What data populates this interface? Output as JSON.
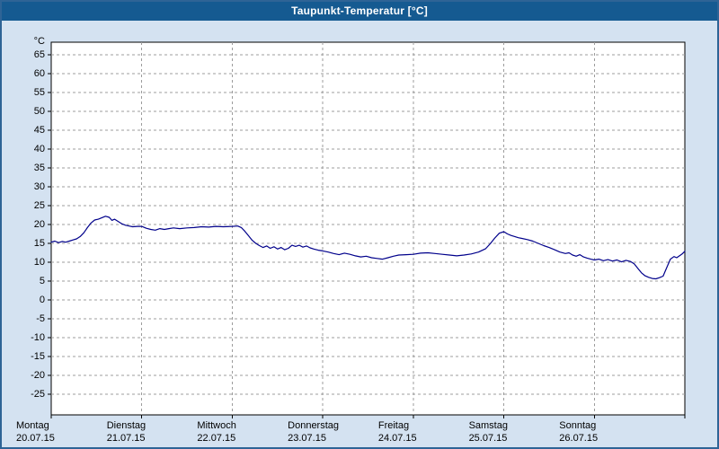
{
  "window": {
    "title": "Taupunkt-Temperatur [°C]"
  },
  "colors": {
    "titlebar": "#155a91",
    "window_background": "#d4e2f1",
    "window_border": "#2e6496",
    "plot_background": "#ffffff",
    "plot_border": "#000000",
    "grid": "#9c9c9c",
    "line": "#00008b",
    "text": "#000000"
  },
  "chart_data": {
    "type": "line",
    "title": "Taupunkt-Temperatur [°C]",
    "ylabel": "°C",
    "xlabel": "",
    "grid": "on",
    "legend": "none",
    "ylim": [
      -25,
      65
    ],
    "y_ticks": [
      65,
      60,
      55,
      50,
      45,
      40,
      35,
      30,
      25,
      20,
      15,
      10,
      5,
      0,
      -5,
      -10,
      -15,
      -20,
      -25
    ],
    "x_range_days": [
      0,
      7
    ],
    "x_days": [
      {
        "name": "Montag",
        "date": "20.07.15"
      },
      {
        "name": "Dienstag",
        "date": "21.07.15"
      },
      {
        "name": "Mittwoch",
        "date": "22.07.15"
      },
      {
        "name": "Donnerstag",
        "date": "23.07.15"
      },
      {
        "name": "Freitag",
        "date": "24.07.15"
      },
      {
        "name": "Samstag",
        "date": "25.07.15"
      },
      {
        "name": "Sonntag",
        "date": "26.07.15"
      }
    ],
    "series": [
      {
        "name": "Taupunkt-Temperatur",
        "unit": "°C",
        "color": "#00008b",
        "points": [
          [
            0.0,
            15.3
          ],
          [
            0.04,
            15.6
          ],
          [
            0.08,
            15.2
          ],
          [
            0.12,
            15.5
          ],
          [
            0.16,
            15.3
          ],
          [
            0.2,
            15.6
          ],
          [
            0.24,
            15.9
          ],
          [
            0.28,
            16.2
          ],
          [
            0.32,
            16.8
          ],
          [
            0.36,
            17.8
          ],
          [
            0.4,
            19.2
          ],
          [
            0.44,
            20.4
          ],
          [
            0.48,
            21.2
          ],
          [
            0.52,
            21.4
          ],
          [
            0.56,
            21.8
          ],
          [
            0.6,
            22.2
          ],
          [
            0.64,
            21.9
          ],
          [
            0.67,
            21.1
          ],
          [
            0.7,
            21.4
          ],
          [
            0.74,
            20.8
          ],
          [
            0.78,
            20.2
          ],
          [
            0.82,
            19.8
          ],
          [
            0.86,
            19.6
          ],
          [
            0.9,
            19.4
          ],
          [
            0.95,
            19.5
          ],
          [
            1.0,
            19.5
          ],
          [
            1.05,
            19.0
          ],
          [
            1.1,
            18.7
          ],
          [
            1.15,
            18.5
          ],
          [
            1.2,
            18.9
          ],
          [
            1.25,
            18.7
          ],
          [
            1.3,
            18.9
          ],
          [
            1.35,
            19.1
          ],
          [
            1.42,
            18.9
          ],
          [
            1.5,
            19.1
          ],
          [
            1.58,
            19.2
          ],
          [
            1.66,
            19.4
          ],
          [
            1.74,
            19.3
          ],
          [
            1.82,
            19.5
          ],
          [
            1.9,
            19.4
          ],
          [
            2.0,
            19.5
          ],
          [
            2.06,
            19.6
          ],
          [
            2.1,
            19.2
          ],
          [
            2.14,
            18.2
          ],
          [
            2.18,
            17.0
          ],
          [
            2.22,
            15.8
          ],
          [
            2.26,
            15.0
          ],
          [
            2.3,
            14.4
          ],
          [
            2.34,
            13.9
          ],
          [
            2.38,
            14.3
          ],
          [
            2.42,
            13.7
          ],
          [
            2.46,
            14.1
          ],
          [
            2.5,
            13.5
          ],
          [
            2.54,
            13.9
          ],
          [
            2.58,
            13.3
          ],
          [
            2.62,
            13.7
          ],
          [
            2.66,
            14.5
          ],
          [
            2.7,
            14.2
          ],
          [
            2.74,
            14.5
          ],
          [
            2.78,
            14.0
          ],
          [
            2.82,
            14.3
          ],
          [
            2.86,
            13.8
          ],
          [
            2.9,
            13.5
          ],
          [
            2.95,
            13.2
          ],
          [
            3.0,
            13.0
          ],
          [
            3.06,
            12.7
          ],
          [
            3.12,
            12.3
          ],
          [
            3.18,
            12.0
          ],
          [
            3.24,
            12.4
          ],
          [
            3.3,
            12.1
          ],
          [
            3.36,
            11.7
          ],
          [
            3.42,
            11.4
          ],
          [
            3.48,
            11.6
          ],
          [
            3.54,
            11.2
          ],
          [
            3.6,
            11.0
          ],
          [
            3.66,
            10.8
          ],
          [
            3.72,
            11.2
          ],
          [
            3.78,
            11.6
          ],
          [
            3.84,
            11.9
          ],
          [
            3.92,
            12.0
          ],
          [
            4.0,
            12.1
          ],
          [
            4.08,
            12.4
          ],
          [
            4.16,
            12.5
          ],
          [
            4.24,
            12.3
          ],
          [
            4.32,
            12.1
          ],
          [
            4.4,
            11.9
          ],
          [
            4.48,
            11.7
          ],
          [
            4.56,
            11.9
          ],
          [
            4.64,
            12.2
          ],
          [
            4.72,
            12.7
          ],
          [
            4.8,
            13.6
          ],
          [
            4.85,
            14.9
          ],
          [
            4.9,
            16.4
          ],
          [
            4.95,
            17.7
          ],
          [
            5.0,
            18.1
          ],
          [
            5.04,
            17.5
          ],
          [
            5.08,
            17.1
          ],
          [
            5.12,
            16.8
          ],
          [
            5.16,
            16.5
          ],
          [
            5.2,
            16.3
          ],
          [
            5.26,
            16.0
          ],
          [
            5.32,
            15.6
          ],
          [
            5.38,
            15.0
          ],
          [
            5.44,
            14.4
          ],
          [
            5.5,
            13.9
          ],
          [
            5.56,
            13.3
          ],
          [
            5.62,
            12.7
          ],
          [
            5.68,
            12.3
          ],
          [
            5.72,
            12.5
          ],
          [
            5.76,
            11.9
          ],
          [
            5.8,
            11.6
          ],
          [
            5.84,
            12.0
          ],
          [
            5.88,
            11.4
          ],
          [
            5.92,
            11.1
          ],
          [
            5.96,
            10.8
          ],
          [
            6.0,
            10.6
          ],
          [
            6.05,
            10.8
          ],
          [
            6.1,
            10.4
          ],
          [
            6.15,
            10.7
          ],
          [
            6.2,
            10.3
          ],
          [
            6.25,
            10.6
          ],
          [
            6.3,
            10.1
          ],
          [
            6.35,
            10.5
          ],
          [
            6.4,
            10.2
          ],
          [
            6.44,
            9.6
          ],
          [
            6.48,
            8.4
          ],
          [
            6.52,
            7.2
          ],
          [
            6.56,
            6.4
          ],
          [
            6.6,
            6.0
          ],
          [
            6.64,
            5.7
          ],
          [
            6.68,
            5.6
          ],
          [
            6.72,
            5.9
          ],
          [
            6.76,
            6.3
          ],
          [
            6.8,
            8.6
          ],
          [
            6.84,
            10.8
          ],
          [
            6.88,
            11.5
          ],
          [
            6.91,
            11.2
          ],
          [
            6.94,
            11.7
          ],
          [
            6.97,
            12.2
          ],
          [
            7.0,
            12.9
          ]
        ]
      }
    ]
  }
}
